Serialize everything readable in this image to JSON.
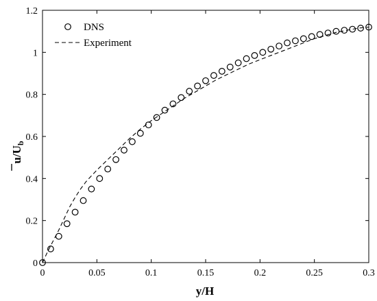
{
  "chart_data": {
    "type": "scatter",
    "xlabel": "y/H",
    "ylabel_main": "u",
    "ylabel_sep": "/",
    "ylabel_denom": "U",
    "ylabel_denom_sub": "b",
    "xlim": [
      0,
      0.3
    ],
    "ylim": [
      0,
      1.2
    ],
    "xticks": [
      0,
      0.05,
      0.1,
      0.15,
      0.2,
      0.25,
      0.3
    ],
    "xtick_labels": [
      "0",
      "0.05",
      "0.1",
      "0.15",
      "0.2",
      "0.25",
      "0.3"
    ],
    "yticks": [
      0,
      0.2,
      0.4,
      0.6,
      0.8,
      1.0,
      1.2
    ],
    "ytick_labels": [
      "0",
      "0.2",
      "0.4",
      "0.6",
      "0.8",
      "1",
      "1.2"
    ],
    "grid": false,
    "legend_position": "top-left",
    "series": [
      {
        "name": "DNS",
        "style": "open-circle",
        "x": [
          0.0,
          0.0075,
          0.015,
          0.0225,
          0.03,
          0.0375,
          0.045,
          0.0525,
          0.06,
          0.0675,
          0.075,
          0.0825,
          0.09,
          0.0975,
          0.105,
          0.1125,
          0.12,
          0.1275,
          0.135,
          0.1425,
          0.15,
          0.1575,
          0.165,
          0.1725,
          0.18,
          0.1875,
          0.195,
          0.2025,
          0.21,
          0.2175,
          0.225,
          0.2325,
          0.24,
          0.2475,
          0.255,
          0.2625,
          0.27,
          0.2775,
          0.285,
          0.2925,
          0.3
        ],
        "y": [
          0.0,
          0.065,
          0.125,
          0.185,
          0.24,
          0.295,
          0.35,
          0.4,
          0.445,
          0.49,
          0.535,
          0.575,
          0.615,
          0.655,
          0.69,
          0.725,
          0.755,
          0.785,
          0.815,
          0.84,
          0.865,
          0.89,
          0.91,
          0.93,
          0.95,
          0.97,
          0.985,
          1.0,
          1.015,
          1.03,
          1.045,
          1.055,
          1.065,
          1.075,
          1.085,
          1.092,
          1.1,
          1.105,
          1.11,
          1.115,
          1.12
        ]
      },
      {
        "name": "Experiment",
        "style": "dashed-line",
        "x": [
          0.0,
          0.005,
          0.01,
          0.015,
          0.02,
          0.025,
          0.03,
          0.035,
          0.04,
          0.05,
          0.06,
          0.07,
          0.08,
          0.09,
          0.1,
          0.11,
          0.12,
          0.13,
          0.14,
          0.15,
          0.16,
          0.17,
          0.18,
          0.19,
          0.2,
          0.21,
          0.22,
          0.23,
          0.24,
          0.25,
          0.26,
          0.27,
          0.28,
          0.29,
          0.3
        ],
        "y": [
          0.0,
          0.055,
          0.105,
          0.155,
          0.21,
          0.265,
          0.31,
          0.35,
          0.385,
          0.44,
          0.49,
          0.54,
          0.59,
          0.635,
          0.675,
          0.71,
          0.745,
          0.78,
          0.81,
          0.84,
          0.87,
          0.895,
          0.92,
          0.945,
          0.965,
          0.985,
          1.005,
          1.025,
          1.045,
          1.065,
          1.08,
          1.095,
          1.105,
          1.115,
          1.12
        ]
      }
    ]
  }
}
